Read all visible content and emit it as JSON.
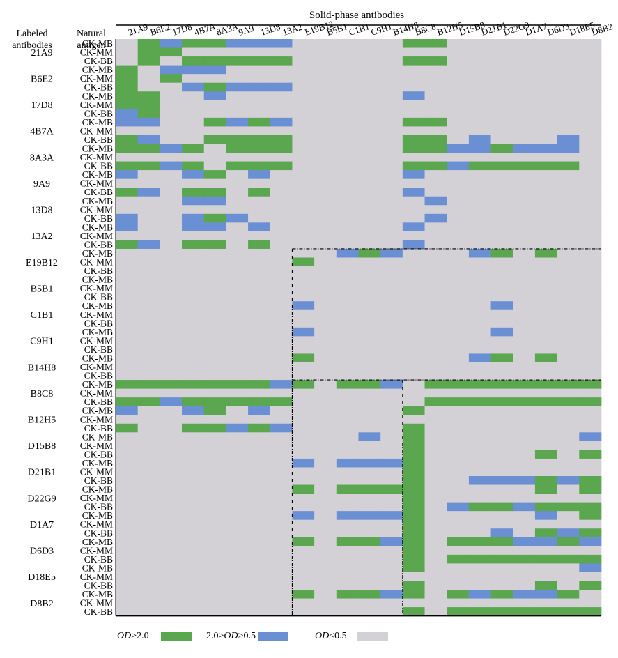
{
  "chart_data": {
    "type": "heatmap",
    "title": "Solid-phase antibodies",
    "row_header_1": "Labeled antibodies",
    "row_header_2": "Natural antigen",
    "columns": [
      "21A9",
      "B6E2",
      "17D8",
      "4B7A",
      "8A3A",
      "9A9",
      "13D8",
      "13A2",
      "E19B12",
      "B5B1",
      "C1B1",
      "C9H1",
      "B14H8",
      "B8C8",
      "B12H5",
      "D15B8",
      "D21B1",
      "D22G9",
      "D1A7",
      "D6D3",
      "D18E5",
      "D8B2"
    ],
    "labeled_antibodies": [
      "21A9",
      "B6E2",
      "17D8",
      "4B7A",
      "8A3A",
      "9A9",
      "13D8",
      "13A2",
      "E19B12",
      "B5B1",
      "C1B1",
      "C9H1",
      "B14H8",
      "B8C8",
      "B12H5",
      "D15B8",
      "D21B1",
      "D22G9",
      "D1A7",
      "D6D3",
      "D18E5",
      "D8B2"
    ],
    "antigens": [
      "CK-MB",
      "CK-MM",
      "CK-BB"
    ],
    "legend": [
      {
        "label": "OD>2.0",
        "color": "#5aa74f"
      },
      {
        "label": "2.0>OD>0.5",
        "color": "#6b8fd3"
      },
      {
        "label": "OD<0.5",
        "color": "#d3d1d6"
      }
    ],
    "categories": [
      "OD<0.5",
      "2.0>OD>0.5",
      "OD>2.0"
    ],
    "legend_placement": "bottom",
    "cell_codes": {
      "0": "OD<0.5",
      "1": "2.0>OD>0.5",
      "2": "OD>2.0"
    },
    "matrix": [
      [
        0,
        2,
        1,
        2,
        2,
        1,
        1,
        1,
        0,
        0,
        0,
        0,
        0,
        2,
        2,
        0,
        0,
        0,
        0,
        0,
        0,
        0
      ],
      [
        0,
        2,
        2,
        0,
        0,
        0,
        0,
        0,
        0,
        0,
        0,
        0,
        0,
        0,
        0,
        0,
        0,
        0,
        0,
        0,
        0,
        0
      ],
      [
        0,
        2,
        0,
        2,
        2,
        2,
        2,
        2,
        0,
        0,
        0,
        0,
        0,
        2,
        2,
        0,
        0,
        0,
        0,
        0,
        0,
        0
      ],
      [
        2,
        0,
        1,
        1,
        1,
        0,
        0,
        0,
        0,
        0,
        0,
        0,
        0,
        0,
        0,
        0,
        0,
        0,
        0,
        0,
        0,
        0
      ],
      [
        2,
        0,
        2,
        0,
        0,
        0,
        0,
        0,
        0,
        0,
        0,
        0,
        0,
        0,
        0,
        0,
        0,
        0,
        0,
        0,
        0,
        0
      ],
      [
        2,
        0,
        0,
        1,
        2,
        1,
        1,
        1,
        0,
        0,
        0,
        0,
        0,
        0,
        0,
        0,
        0,
        0,
        0,
        0,
        0,
        0
      ],
      [
        2,
        2,
        0,
        0,
        1,
        0,
        0,
        0,
        0,
        0,
        0,
        0,
        0,
        1,
        0,
        0,
        0,
        0,
        0,
        0,
        0,
        0
      ],
      [
        2,
        2,
        0,
        0,
        0,
        0,
        0,
        0,
        0,
        0,
        0,
        0,
        0,
        0,
        0,
        0,
        0,
        0,
        0,
        0,
        0,
        0
      ],
      [
        1,
        2,
        0,
        0,
        0,
        0,
        0,
        0,
        0,
        0,
        0,
        0,
        0,
        0,
        0,
        0,
        0,
        0,
        0,
        0,
        0,
        0
      ],
      [
        1,
        1,
        0,
        0,
        2,
        1,
        2,
        1,
        0,
        0,
        0,
        0,
        0,
        2,
        2,
        0,
        0,
        0,
        0,
        0,
        0,
        0
      ],
      [
        0,
        0,
        0,
        0,
        0,
        0,
        0,
        0,
        0,
        0,
        0,
        0,
        0,
        0,
        0,
        0,
        0,
        0,
        0,
        0,
        0,
        0
      ],
      [
        2,
        1,
        0,
        0,
        2,
        2,
        2,
        2,
        0,
        0,
        0,
        0,
        0,
        2,
        2,
        0,
        1,
        0,
        0,
        0,
        1,
        0
      ],
      [
        2,
        2,
        1,
        2,
        0,
        2,
        2,
        2,
        0,
        0,
        0,
        0,
        0,
        2,
        2,
        1,
        1,
        2,
        1,
        1,
        1,
        0
      ],
      [
        0,
        0,
        0,
        0,
        0,
        0,
        0,
        0,
        0,
        0,
        0,
        0,
        0,
        0,
        0,
        0,
        0,
        0,
        0,
        0,
        0,
        0
      ],
      [
        2,
        2,
        1,
        2,
        0,
        2,
        2,
        2,
        0,
        0,
        0,
        0,
        0,
        2,
        2,
        1,
        2,
        2,
        2,
        2,
        2,
        0
      ],
      [
        1,
        0,
        0,
        1,
        2,
        0,
        1,
        0,
        0,
        0,
        0,
        0,
        0,
        1,
        0,
        0,
        0,
        0,
        0,
        0,
        0,
        0
      ],
      [
        0,
        0,
        0,
        0,
        0,
        0,
        0,
        0,
        0,
        0,
        0,
        0,
        0,
        0,
        0,
        0,
        0,
        0,
        0,
        0,
        0,
        0
      ],
      [
        2,
        1,
        0,
        2,
        2,
        0,
        2,
        0,
        0,
        0,
        0,
        0,
        0,
        1,
        0,
        0,
        0,
        0,
        0,
        0,
        0,
        0
      ],
      [
        0,
        0,
        0,
        1,
        1,
        0,
        0,
        0,
        0,
        0,
        0,
        0,
        0,
        0,
        1,
        0,
        0,
        0,
        0,
        0,
        0,
        0
      ],
      [
        0,
        0,
        0,
        0,
        0,
        0,
        0,
        0,
        0,
        0,
        0,
        0,
        0,
        0,
        0,
        0,
        0,
        0,
        0,
        0,
        0,
        0
      ],
      [
        1,
        0,
        0,
        1,
        2,
        1,
        0,
        0,
        0,
        0,
        0,
        0,
        0,
        0,
        1,
        0,
        0,
        0,
        0,
        0,
        0,
        0
      ],
      [
        1,
        0,
        0,
        1,
        1,
        0,
        1,
        0,
        0,
        0,
        0,
        0,
        0,
        1,
        0,
        0,
        0,
        0,
        0,
        0,
        0,
        0
      ],
      [
        0,
        0,
        0,
        0,
        0,
        0,
        0,
        0,
        0,
        0,
        0,
        0,
        0,
        0,
        0,
        0,
        0,
        0,
        0,
        0,
        0,
        0
      ],
      [
        2,
        1,
        0,
        2,
        2,
        0,
        2,
        0,
        0,
        0,
        0,
        0,
        0,
        1,
        0,
        0,
        0,
        0,
        0,
        0,
        0,
        0
      ],
      [
        0,
        0,
        0,
        0,
        0,
        0,
        0,
        0,
        0,
        0,
        1,
        2,
        1,
        0,
        0,
        0,
        1,
        2,
        0,
        2,
        0,
        0
      ],
      [
        0,
        0,
        0,
        0,
        0,
        0,
        0,
        0,
        2,
        0,
        0,
        0,
        0,
        0,
        0,
        0,
        0,
        0,
        0,
        0,
        0,
        0
      ],
      [
        0,
        0,
        0,
        0,
        0,
        0,
        0,
        0,
        0,
        0,
        0,
        0,
        0,
        0,
        0,
        0,
        0,
        0,
        0,
        0,
        0,
        0
      ],
      [
        0,
        0,
        0,
        0,
        0,
        0,
        0,
        0,
        0,
        0,
        0,
        0,
        0,
        0,
        0,
        0,
        0,
        0,
        0,
        0,
        0,
        0
      ],
      [
        0,
        0,
        0,
        0,
        0,
        0,
        0,
        0,
        0,
        0,
        0,
        0,
        0,
        0,
        0,
        0,
        0,
        0,
        0,
        0,
        0,
        0
      ],
      [
        0,
        0,
        0,
        0,
        0,
        0,
        0,
        0,
        0,
        0,
        0,
        0,
        0,
        0,
        0,
        0,
        0,
        0,
        0,
        0,
        0,
        0
      ],
      [
        0,
        0,
        0,
        0,
        0,
        0,
        0,
        0,
        1,
        0,
        0,
        0,
        0,
        0,
        0,
        0,
        0,
        1,
        0,
        0,
        0,
        0
      ],
      [
        0,
        0,
        0,
        0,
        0,
        0,
        0,
        0,
        0,
        0,
        0,
        0,
        0,
        0,
        0,
        0,
        0,
        0,
        0,
        0,
        0,
        0
      ],
      [
        0,
        0,
        0,
        0,
        0,
        0,
        0,
        0,
        0,
        0,
        0,
        0,
        0,
        0,
        0,
        0,
        0,
        0,
        0,
        0,
        0,
        0
      ],
      [
        0,
        0,
        0,
        0,
        0,
        0,
        0,
        0,
        1,
        0,
        0,
        0,
        0,
        0,
        0,
        0,
        0,
        1,
        0,
        0,
        0,
        0
      ],
      [
        0,
        0,
        0,
        0,
        0,
        0,
        0,
        0,
        0,
        0,
        0,
        0,
        0,
        0,
        0,
        0,
        0,
        0,
        0,
        0,
        0,
        0
      ],
      [
        0,
        0,
        0,
        0,
        0,
        0,
        0,
        0,
        0,
        0,
        0,
        0,
        0,
        0,
        0,
        0,
        0,
        0,
        0,
        0,
        0,
        0
      ],
      [
        0,
        0,
        0,
        0,
        0,
        0,
        0,
        0,
        2,
        0,
        0,
        0,
        0,
        0,
        0,
        0,
        1,
        2,
        0,
        2,
        0,
        0
      ],
      [
        0,
        0,
        0,
        0,
        0,
        0,
        0,
        0,
        0,
        0,
        0,
        0,
        0,
        0,
        0,
        0,
        0,
        0,
        0,
        0,
        0,
        0
      ],
      [
        0,
        0,
        0,
        0,
        0,
        0,
        0,
        0,
        0,
        0,
        0,
        0,
        0,
        0,
        0,
        0,
        0,
        0,
        0,
        0,
        0,
        0
      ],
      [
        2,
        2,
        2,
        2,
        2,
        2,
        2,
        1,
        2,
        0,
        2,
        2,
        1,
        0,
        2,
        2,
        2,
        2,
        2,
        2,
        2,
        2
      ],
      [
        0,
        0,
        0,
        0,
        0,
        0,
        0,
        0,
        0,
        0,
        0,
        0,
        0,
        0,
        0,
        0,
        0,
        0,
        0,
        0,
        0,
        0
      ],
      [
        2,
        2,
        1,
        2,
        2,
        2,
        2,
        2,
        0,
        0,
        0,
        0,
        0,
        0,
        2,
        2,
        2,
        2,
        2,
        2,
        2,
        2
      ],
      [
        1,
        0,
        0,
        1,
        2,
        0,
        1,
        0,
        0,
        0,
        0,
        0,
        0,
        2,
        0,
        0,
        0,
        0,
        0,
        0,
        0,
        0
      ],
      [
        0,
        0,
        0,
        0,
        0,
        0,
        0,
        0,
        0,
        0,
        0,
        0,
        0,
        0,
        0,
        0,
        0,
        0,
        0,
        0,
        0,
        0
      ],
      [
        2,
        0,
        0,
        2,
        2,
        1,
        2,
        1,
        0,
        0,
        0,
        0,
        0,
        2,
        0,
        0,
        0,
        0,
        0,
        0,
        0,
        0
      ],
      [
        0,
        0,
        0,
        0,
        0,
        0,
        0,
        0,
        0,
        0,
        0,
        1,
        0,
        2,
        0,
        0,
        0,
        0,
        0,
        0,
        0,
        1
      ],
      [
        0,
        0,
        0,
        0,
        0,
        0,
        0,
        0,
        0,
        0,
        0,
        0,
        0,
        2,
        0,
        0,
        0,
        0,
        0,
        0,
        0,
        0
      ],
      [
        0,
        0,
        0,
        0,
        0,
        0,
        0,
        0,
        0,
        0,
        0,
        0,
        0,
        2,
        0,
        0,
        0,
        0,
        0,
        2,
        0,
        2
      ],
      [
        0,
        0,
        0,
        0,
        0,
        0,
        0,
        0,
        1,
        0,
        1,
        1,
        1,
        2,
        0,
        0,
        0,
        0,
        0,
        0,
        0,
        0
      ],
      [
        0,
        0,
        0,
        0,
        0,
        0,
        0,
        0,
        0,
        0,
        0,
        0,
        0,
        2,
        0,
        0,
        0,
        0,
        0,
        0,
        0,
        0
      ],
      [
        0,
        0,
        0,
        0,
        0,
        0,
        0,
        0,
        0,
        0,
        0,
        0,
        0,
        2,
        0,
        0,
        1,
        1,
        1,
        2,
        1,
        2
      ],
      [
        0,
        0,
        0,
        0,
        0,
        0,
        0,
        0,
        2,
        0,
        2,
        2,
        2,
        2,
        0,
        0,
        0,
        0,
        0,
        2,
        0,
        2
      ],
      [
        0,
        0,
        0,
        0,
        0,
        0,
        0,
        0,
        0,
        0,
        0,
        0,
        0,
        2,
        0,
        0,
        0,
        0,
        0,
        0,
        0,
        0
      ],
      [
        0,
        0,
        0,
        0,
        0,
        0,
        0,
        0,
        0,
        0,
        0,
        0,
        0,
        2,
        0,
        1,
        2,
        2,
        1,
        2,
        2,
        2
      ],
      [
        0,
        0,
        0,
        0,
        0,
        0,
        0,
        0,
        1,
        0,
        1,
        1,
        1,
        2,
        0,
        0,
        0,
        0,
        0,
        1,
        0,
        2
      ],
      [
        0,
        0,
        0,
        0,
        0,
        0,
        0,
        0,
        0,
        0,
        0,
        0,
        0,
        2,
        0,
        0,
        0,
        0,
        0,
        0,
        0,
        0
      ],
      [
        0,
        0,
        0,
        0,
        0,
        0,
        0,
        0,
        0,
        0,
        0,
        0,
        0,
        2,
        0,
        0,
        0,
        1,
        0,
        2,
        1,
        2
      ],
      [
        0,
        0,
        0,
        0,
        0,
        0,
        0,
        0,
        2,
        0,
        2,
        2,
        1,
        2,
        0,
        2,
        2,
        2,
        1,
        1,
        2,
        1
      ],
      [
        0,
        0,
        0,
        0,
        0,
        0,
        0,
        0,
        0,
        0,
        0,
        0,
        0,
        2,
        0,
        0,
        0,
        0,
        0,
        0,
        0,
        0
      ],
      [
        0,
        0,
        0,
        0,
        0,
        0,
        0,
        0,
        0,
        0,
        0,
        0,
        0,
        2,
        0,
        2,
        2,
        2,
        2,
        2,
        2,
        2
      ],
      [
        0,
        0,
        0,
        0,
        0,
        0,
        0,
        0,
        0,
        0,
        0,
        0,
        0,
        2,
        0,
        0,
        0,
        0,
        0,
        0,
        0,
        1
      ],
      [
        0,
        0,
        0,
        0,
        0,
        0,
        0,
        0,
        0,
        0,
        0,
        0,
        0,
        0,
        0,
        0,
        0,
        0,
        0,
        0,
        0,
        0
      ],
      [
        0,
        0,
        0,
        0,
        0,
        0,
        0,
        0,
        0,
        0,
        0,
        0,
        0,
        2,
        0,
        0,
        0,
        0,
        0,
        2,
        0,
        2
      ],
      [
        0,
        0,
        0,
        0,
        0,
        0,
        0,
        0,
        2,
        0,
        2,
        2,
        1,
        2,
        0,
        2,
        1,
        2,
        1,
        1,
        2,
        0
      ],
      [
        0,
        0,
        0,
        0,
        0,
        0,
        0,
        0,
        0,
        0,
        0,
        0,
        0,
        0,
        0,
        0,
        0,
        0,
        0,
        0,
        0,
        0
      ],
      [
        0,
        0,
        0,
        0,
        0,
        0,
        0,
        0,
        0,
        0,
        0,
        0,
        0,
        2,
        0,
        2,
        2,
        2,
        2,
        2,
        2,
        2
      ]
    ]
  }
}
